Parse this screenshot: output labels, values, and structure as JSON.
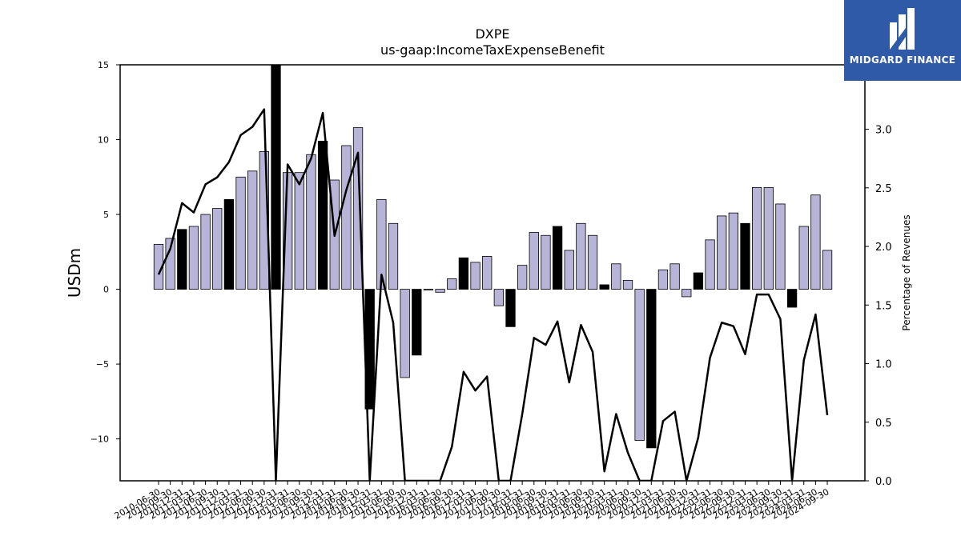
{
  "brand": {
    "name": "MIDGARD FINANCE",
    "color": "#2f5aa8"
  },
  "chart_data": {
    "type": "bar",
    "title": "DXPE",
    "subtitle": "us-gaap:IncomeTaxExpenseBenefit",
    "ylabel": "USDm",
    "y2label": "Percentage of Revenues",
    "ylim": [
      -12.8,
      15
    ],
    "y2lim": [
      0,
      3.55
    ],
    "yticks": [
      -10,
      -5,
      0,
      5,
      10,
      15
    ],
    "y2ticks": [
      "0.0",
      "0.5",
      "1.0",
      "1.5",
      "2.0",
      "2.5",
      "3.0"
    ],
    "grid": false,
    "colors": {
      "quarter_bar": "#b8b4d8",
      "year_bar": "#000000",
      "line": "#000000"
    },
    "categories": [
      "2010-06-30",
      "2010-09-30",
      "2010-12-31",
      "2011-03-31",
      "2011-06-30",
      "2011-09-30",
      "2011-12-31",
      "2012-03-31",
      "2012-06-30",
      "2012-09-30",
      "2012-12-31",
      "2013-03-31",
      "2013-06-30",
      "2013-09-30",
      "2013-12-31",
      "2014-03-31",
      "2014-06-30",
      "2014-09-30",
      "2014-12-31",
      "2015-03-31",
      "2015-06-30",
      "2015-09-30",
      "2015-12-31",
      "2016-03-31",
      "2016-06-30",
      "2016-09-30",
      "2016-12-31",
      "2017-03-31",
      "2017-06-30",
      "2017-09-30",
      "2017-12-31",
      "2018-03-31",
      "2018-06-30",
      "2018-09-30",
      "2018-12-31",
      "2019-03-31",
      "2019-06-30",
      "2019-09-30",
      "2019-12-31",
      "2020-03-31",
      "2020-06-30",
      "2020-09-30",
      "2020-12-31",
      "2021-03-31",
      "2021-06-30",
      "2021-09-30",
      "2021-12-31",
      "2022-03-31",
      "2022-06-30",
      "2022-09-30",
      "2022-12-31",
      "2023-03-31",
      "2023-06-30",
      "2023-09-30",
      "2023-12-31",
      "2024-03-31",
      "2024-06-30",
      "2024-09-30"
    ],
    "series": [
      {
        "kind": "bar",
        "values": [
          3.0,
          3.4,
          4.0,
          4.2,
          5.0,
          5.4,
          6.0,
          7.5,
          7.9,
          9.2,
          15.0,
          7.8,
          7.8,
          9.0,
          9.9,
          7.3,
          9.6,
          10.8,
          -8.0,
          6.0,
          4.4,
          -5.9,
          -4.4,
          -0.05,
          -0.2,
          0.7,
          2.1,
          1.8,
          2.2,
          -1.1,
          -2.5,
          1.6,
          3.8,
          3.6,
          4.2,
          2.6,
          4.4,
          3.6,
          0.3,
          1.7,
          0.6,
          -10.1,
          -10.6,
          1.3,
          1.7,
          -0.5,
          1.1,
          3.3,
          4.9,
          5.1,
          4.4,
          6.8,
          6.8,
          5.7,
          -1.2,
          4.2,
          6.3,
          2.6
        ],
        "year_end": [
          false,
          false,
          true,
          false,
          false,
          false,
          true,
          false,
          false,
          false,
          true,
          false,
          false,
          false,
          true,
          false,
          false,
          false,
          true,
          false,
          false,
          false,
          true,
          false,
          false,
          false,
          true,
          false,
          false,
          false,
          true,
          false,
          false,
          false,
          true,
          false,
          false,
          false,
          true,
          false,
          false,
          false,
          true,
          false,
          false,
          false,
          true,
          false,
          false,
          false,
          true,
          false,
          false,
          false,
          true,
          false,
          false,
          false
        ]
      },
      {
        "kind": "line",
        "axis": "right",
        "values": [
          1.76,
          1.98,
          2.37,
          2.29,
          2.53,
          2.59,
          2.72,
          2.95,
          3.02,
          3.17,
          0.0,
          2.7,
          2.53,
          2.75,
          3.14,
          2.09,
          2.48,
          2.8,
          0.0,
          1.76,
          1.35,
          0.0,
          0.0,
          0.0,
          0.0,
          0.29,
          0.93,
          0.77,
          0.89,
          0.0,
          0.0,
          0.57,
          1.22,
          1.16,
          1.36,
          0.84,
          1.33,
          1.1,
          0.08,
          0.57,
          0.24,
          0.0,
          0.0,
          0.51,
          0.59,
          0.0,
          0.37,
          1.05,
          1.35,
          1.32,
          1.08,
          1.59,
          1.59,
          1.38,
          0.0,
          1.03,
          1.42,
          0.56
        ]
      }
    ]
  }
}
